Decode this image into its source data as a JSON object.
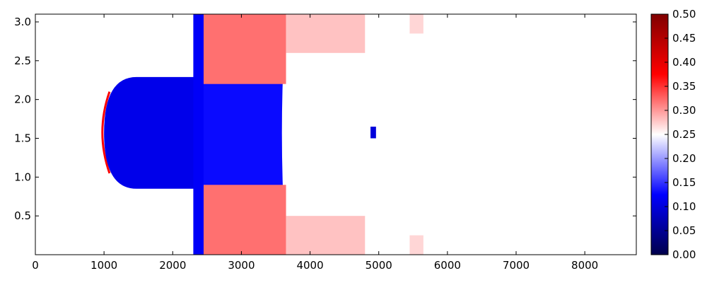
{
  "chart_data": {
    "type": "heatmap",
    "title": "",
    "xlabel": "",
    "ylabel": "",
    "xlim": [
      0,
      8750
    ],
    "ylim": [
      0,
      3.1
    ],
    "x_ticks": [
      0,
      1000,
      2000,
      3000,
      4000,
      5000,
      6000,
      7000,
      8000
    ],
    "x_tick_labels": [
      "0",
      "1000",
      "2000",
      "3000",
      "4000",
      "5000",
      "6000",
      "7000",
      "8000"
    ],
    "y_ticks": [
      0.5,
      1.0,
      1.5,
      2.0,
      2.5,
      3.0
    ],
    "y_tick_labels": [
      "0.5",
      "1.0",
      "1.5",
      "2.0",
      "2.5",
      "3.0"
    ],
    "colormap": "seismic",
    "color_stops": [
      "#00004c",
      "#0000ff",
      "#ffffff",
      "#ff0000",
      "#800000"
    ],
    "colorbar": {
      "range": [
        0.0,
        0.5
      ],
      "ticks": [
        0.0,
        0.05,
        0.1,
        0.15,
        0.2,
        0.25,
        0.3,
        0.35,
        0.4,
        0.45,
        0.5
      ],
      "tick_labels": [
        "0.00",
        "0.05",
        "0.10",
        "0.15",
        "0.20",
        "0.25",
        "0.30",
        "0.35",
        "0.40",
        "0.45",
        "0.50"
      ]
    },
    "grid": false,
    "background_value": 0.25,
    "regions": [
      {
        "shape": "front_arc",
        "x_vertex": 950,
        "x_edge": 1080,
        "y_min": 1.05,
        "y_max": 2.1,
        "value": 0.38
      },
      {
        "shape": "dome",
        "x_start": 1000,
        "x_end": 2350,
        "y_center": 1.57,
        "y_half_max": 0.72,
        "value": 0.11
      },
      {
        "shape": "band",
        "x_start": 2300,
        "x_end": 2450,
        "y_min": 0.0,
        "y_max": 3.1,
        "value": 0.12
      },
      {
        "shape": "hollow",
        "x_start": 2450,
        "x_end": 3650,
        "y_center": 1.57,
        "y_half_max": 1.5,
        "value": 0.13
      },
      {
        "shape": "rect",
        "x_start": 2450,
        "x_end": 3650,
        "y_min": 2.2,
        "y_max": 3.1,
        "value": 0.32
      },
      {
        "shape": "rect",
        "x_start": 2450,
        "x_end": 3650,
        "y_min": 0.0,
        "y_max": 0.9,
        "value": 0.32
      },
      {
        "shape": "rect",
        "x_start": 3650,
        "x_end": 4800,
        "y_min": 2.6,
        "y_max": 3.1,
        "value": 0.28
      },
      {
        "shape": "rect",
        "x_start": 3650,
        "x_end": 4800,
        "y_min": 0.0,
        "y_max": 0.5,
        "value": 0.28
      },
      {
        "shape": "rect",
        "x_start": 5450,
        "x_end": 5650,
        "y_min": 2.85,
        "y_max": 3.1,
        "value": 0.27
      },
      {
        "shape": "rect",
        "x_start": 5450,
        "x_end": 5650,
        "y_min": 0.0,
        "y_max": 0.25,
        "value": 0.27
      },
      {
        "shape": "rect",
        "x_start": 4880,
        "x_end": 4960,
        "y_min": 1.5,
        "y_max": 1.65,
        "value": 0.1
      }
    ]
  }
}
